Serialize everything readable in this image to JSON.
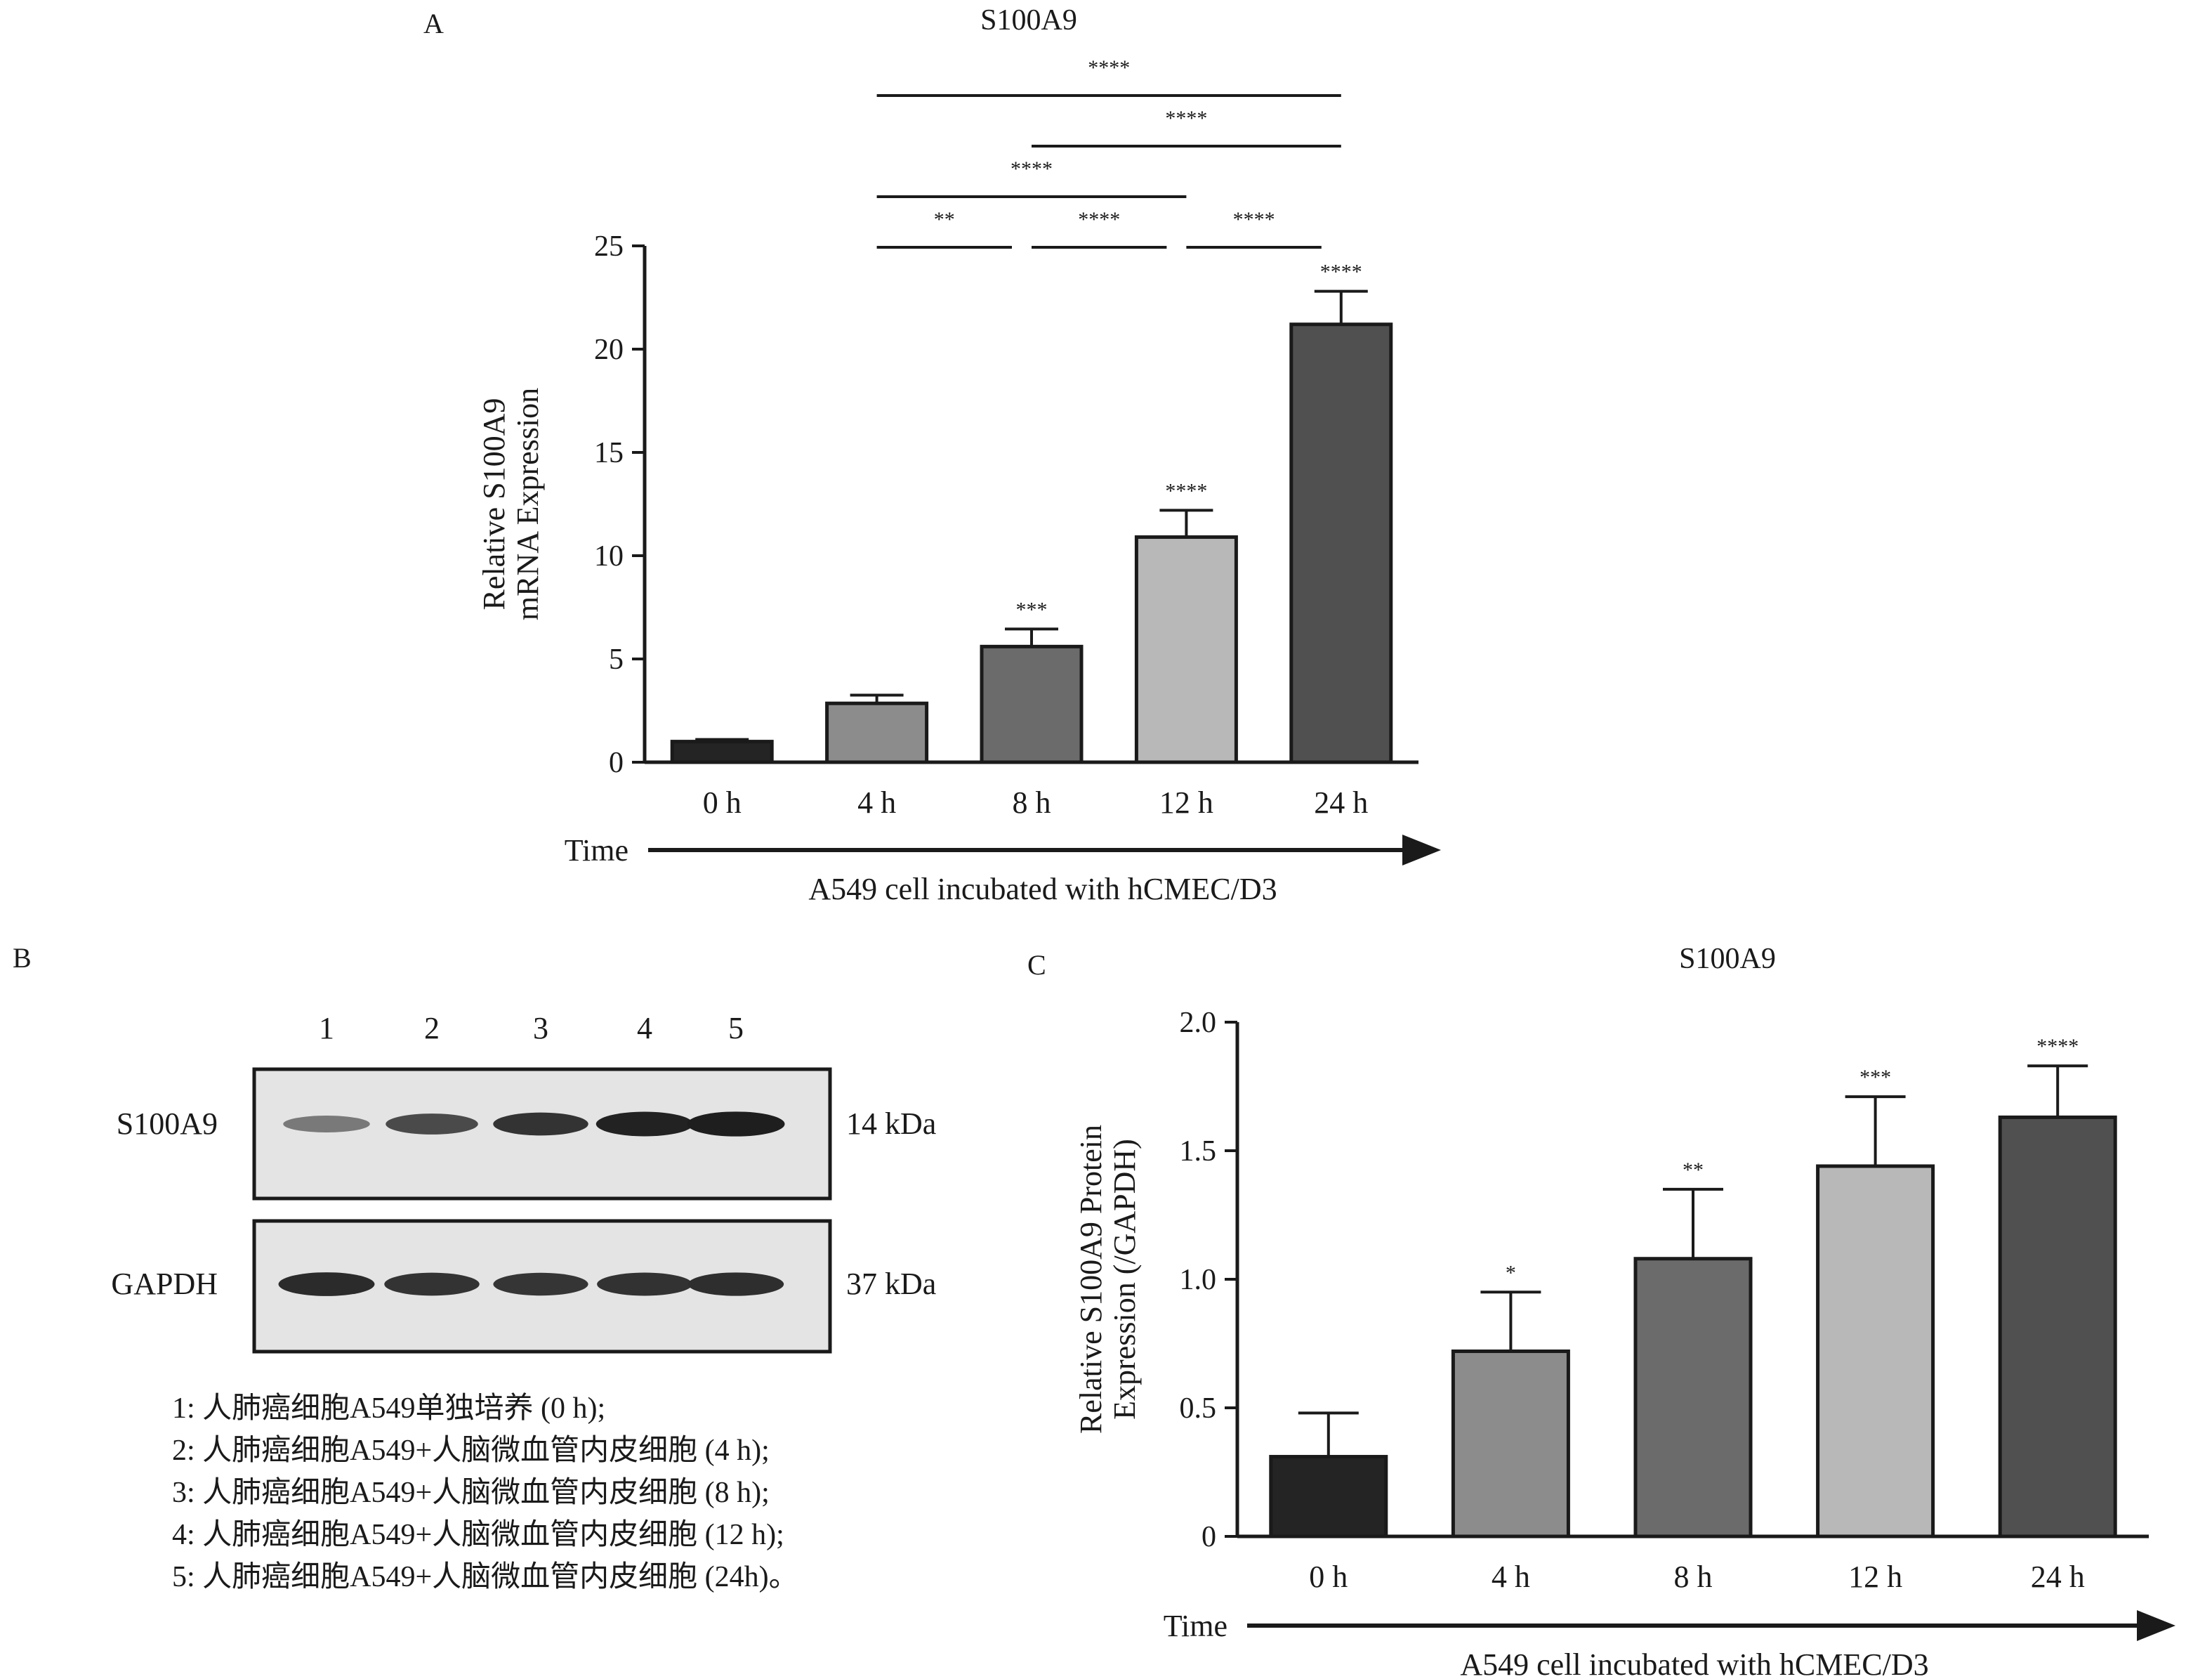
{
  "panels": {
    "a": {
      "letter": "A",
      "chart_data": {
        "type": "bar",
        "title": "S100A9",
        "ylabel": [
          "Relative S100A9",
          "mRNA Expression"
        ],
        "xlabel": "A549 cell incubated with hCMEC/D3",
        "axis_arrow_label": "Time",
        "categories": [
          "0 h",
          "4 h",
          "8 h",
          "12 h",
          "24 h"
        ],
        "values": [
          1.0,
          2.85,
          5.6,
          10.9,
          21.2
        ],
        "errors": [
          0.1,
          0.4,
          0.85,
          1.3,
          1.6
        ],
        "bar_colors": [
          "#242424",
          "#8c8c8c",
          "#6b6b6b",
          "#b8b8b8",
          "#505050"
        ],
        "ylim": [
          0,
          25
        ],
        "yticks": [
          0,
          5,
          10,
          15,
          20,
          25
        ],
        "bar_significance": [
          "",
          "",
          "***",
          "****",
          "****"
        ],
        "comparisons": [
          {
            "from": 1,
            "to": 2,
            "label": "**",
            "level": 0
          },
          {
            "from": 2,
            "to": 3,
            "label": "****",
            "level": 0
          },
          {
            "from": 3,
            "to": 4,
            "label": "****",
            "level": 0
          },
          {
            "from": 1,
            "to": 3,
            "label": "****",
            "level": 1
          },
          {
            "from": 2,
            "to": 4,
            "label": "****",
            "level": 2
          },
          {
            "from": 1,
            "to": 4,
            "label": "****",
            "level": 3
          }
        ]
      }
    },
    "b": {
      "letter": "B",
      "lane_numbers": [
        "1",
        "2",
        "3",
        "4",
        "5"
      ],
      "rows": [
        {
          "label": "S100A9",
          "size": "14 kDa",
          "intensities": [
            0.45,
            0.72,
            0.85,
            0.95,
            0.97
          ]
        },
        {
          "label": "GAPDH",
          "size": "37 kDa",
          "intensities": [
            0.9,
            0.85,
            0.84,
            0.86,
            0.88
          ]
        }
      ],
      "legend": [
        "1: 人肺癌细胞A549单独培养 (0 h);",
        "2: 人肺癌细胞A549+人脑微血管内皮细胞 (4 h);",
        "3: 人肺癌细胞A549+人脑微血管内皮细胞 (8 h);",
        "4: 人肺癌细胞A549+人脑微血管内皮细胞 (12 h);",
        "5: 人肺癌细胞A549+人脑微血管内皮细胞 (24h)。"
      ]
    },
    "c": {
      "letter": "C",
      "chart_data": {
        "type": "bar",
        "title": "S100A9",
        "ylabel": [
          "Relative S100A9 Protein",
          "Expression (/GAPDH)"
        ],
        "xlabel": "A549 cell incubated with hCMEC/D3",
        "axis_arrow_label": "Time",
        "categories": [
          "0 h",
          "4 h",
          "8 h",
          "12 h",
          "24 h"
        ],
        "values": [
          0.31,
          0.72,
          1.08,
          1.44,
          1.63
        ],
        "errors": [
          0.17,
          0.23,
          0.27,
          0.27,
          0.2
        ],
        "bar_colors": [
          "#242424",
          "#8c8c8c",
          "#6b6b6b",
          "#b8b8b8",
          "#505050"
        ],
        "ylim": [
          0,
          2.0
        ],
        "yticks": [
          0,
          0.5,
          1.0,
          1.5,
          2.0
        ],
        "ytick_labels": [
          "0",
          "0.5",
          "1.0",
          "1.5",
          "2.0"
        ],
        "bar_significance": [
          "",
          "*",
          "**",
          "***",
          "****"
        ]
      }
    }
  }
}
